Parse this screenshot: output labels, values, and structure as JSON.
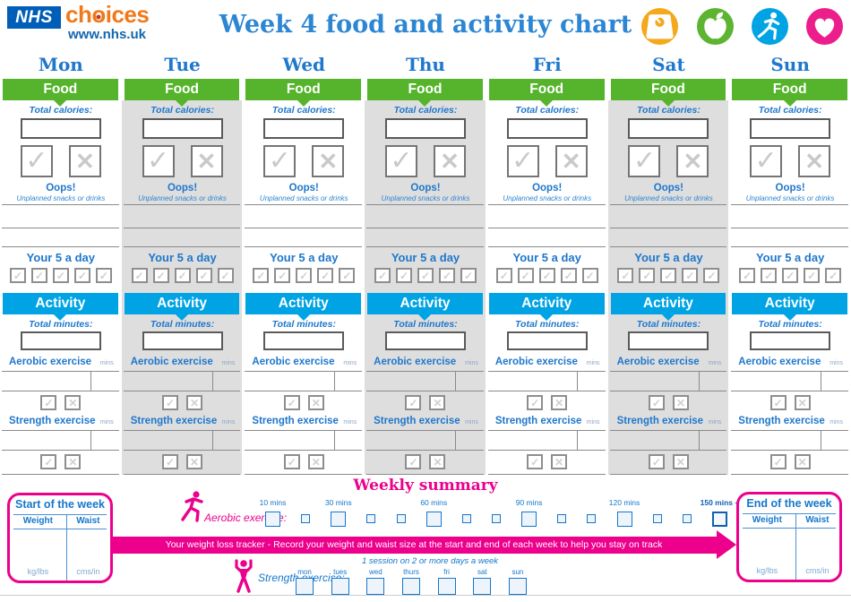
{
  "header": {
    "nhs_logo": "NHS",
    "brand_pre": "ch",
    "brand_o": "o",
    "brand_post": "ices",
    "url": "www.nhs.uk",
    "title": "Week 4 food and activity chart",
    "icons": [
      "scales-icon",
      "apple-icon",
      "runner-icon",
      "heart-icon"
    ]
  },
  "days": [
    {
      "label": "Mon",
      "shaded": false
    },
    {
      "label": "Tue",
      "shaded": true
    },
    {
      "label": "Wed",
      "shaded": false
    },
    {
      "label": "Thu",
      "shaded": true
    },
    {
      "label": "Fri",
      "shaded": false
    },
    {
      "label": "Sat",
      "shaded": true
    },
    {
      "label": "Sun",
      "shaded": false
    }
  ],
  "column": {
    "food_header": "Food",
    "total_calories_label": "Total calories:",
    "check_glyph": "✓",
    "cross_glyph": "✕",
    "oops_title": "Oops!",
    "oops_subtitle": "Unplanned snacks or drinks",
    "five_a_day_label": "Your 5 a day",
    "five_a_day_box_count": 5,
    "activity_header": "Activity",
    "total_minutes_label": "Total minutes:",
    "aerobic_label": "Aerobic exercise",
    "strength_label": "Strength exercise",
    "mins_label": "mins"
  },
  "summary": {
    "title": "Weekly summary",
    "aerobic_label": "Aerobic exercise:",
    "strength_label": "Strength exercise:",
    "session_note": "1 session on 2 or more days a week",
    "banner": "Your weight loss tracker - Record your weight and waist size at the start and end of each week to help you stay on track",
    "aerobic_scale": [
      {
        "size": "big",
        "label": "10 mins"
      },
      {
        "size": "small"
      },
      {
        "size": "big",
        "label": "30 mins"
      },
      {
        "size": "small"
      },
      {
        "size": "small"
      },
      {
        "size": "big",
        "label": "60 mins"
      },
      {
        "size": "small"
      },
      {
        "size": "small"
      },
      {
        "size": "big",
        "label": "90 mins"
      },
      {
        "size": "small"
      },
      {
        "size": "small"
      },
      {
        "size": "big",
        "label": "120 mins"
      },
      {
        "size": "small"
      },
      {
        "size": "small"
      },
      {
        "size": "big",
        "label": "150 mins +",
        "emphasis": true
      }
    ],
    "strength_days": [
      "mon",
      "tues",
      "wed",
      "thurs",
      "fri",
      "sat",
      "sun"
    ],
    "start_box": {
      "title": "Start of the week",
      "col1": "Weight",
      "col2": "Waist",
      "unit1": "kg/lbs",
      "unit2": "cms/in"
    },
    "end_box": {
      "title": "End of the week",
      "col1": "Weight",
      "col2": "Waist",
      "unit1": "kg/lbs",
      "unit2": "cms/in"
    }
  },
  "colors": {
    "nhs_blue": "#005EB8",
    "brand_orange": "#F0791A",
    "food_green": "#55B42B",
    "activity_blue": "#00A3E3",
    "label_blue": "#1F77CB",
    "pink": "#EC008C",
    "shaded_column": "#DEDEDE",
    "scales_icon": "#F5A81C",
    "apple_icon": "#5CB431",
    "runner_icon": "#00A3E3",
    "heart_icon": "#EC1E8C"
  }
}
